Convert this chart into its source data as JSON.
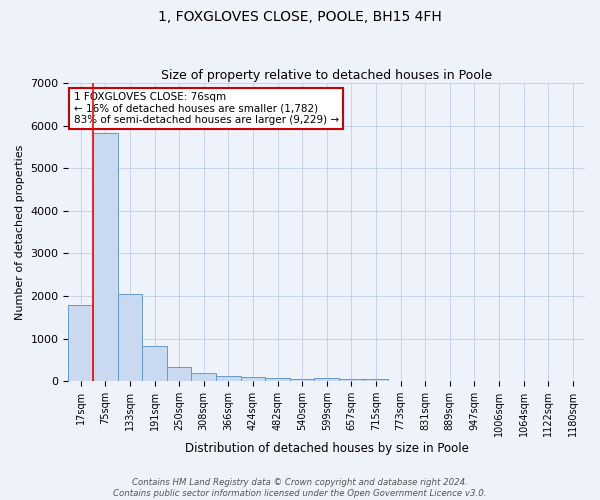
{
  "title": "1, FOXGLOVES CLOSE, POOLE, BH15 4FH",
  "subtitle": "Size of property relative to detached houses in Poole",
  "xlabel": "Distribution of detached houses by size in Poole",
  "ylabel": "Number of detached properties",
  "bar_labels": [
    "17sqm",
    "75sqm",
    "133sqm",
    "191sqm",
    "250sqm",
    "308sqm",
    "366sqm",
    "424sqm",
    "482sqm",
    "540sqm",
    "599sqm",
    "657sqm",
    "715sqm",
    "773sqm",
    "831sqm",
    "889sqm",
    "947sqm",
    "1006sqm",
    "1064sqm",
    "1122sqm",
    "1180sqm"
  ],
  "bar_values": [
    1782,
    5820,
    2050,
    830,
    340,
    200,
    120,
    100,
    80,
    60,
    70,
    50,
    50,
    0,
    0,
    0,
    0,
    0,
    0,
    0,
    0
  ],
  "bar_color": "#c9d9f0",
  "bar_edge_color": "#6699cc",
  "red_line_index": 1,
  "ylim": [
    0,
    7000
  ],
  "annotation_lines": [
    "1 FOXGLOVES CLOSE: 76sqm",
    "← 16% of detached houses are smaller (1,782)",
    "83% of semi-detached houses are larger (9,229) →"
  ],
  "annotation_box_color": "#ffffff",
  "annotation_box_edge": "#cc0000",
  "footer_line1": "Contains HM Land Registry data © Crown copyright and database right 2024.",
  "footer_line2": "Contains public sector information licensed under the Open Government Licence v3.0.",
  "background_color": "#eef2fb",
  "grid_color": "#b8c8e8",
  "title_fontsize": 10,
  "subtitle_fontsize": 9
}
